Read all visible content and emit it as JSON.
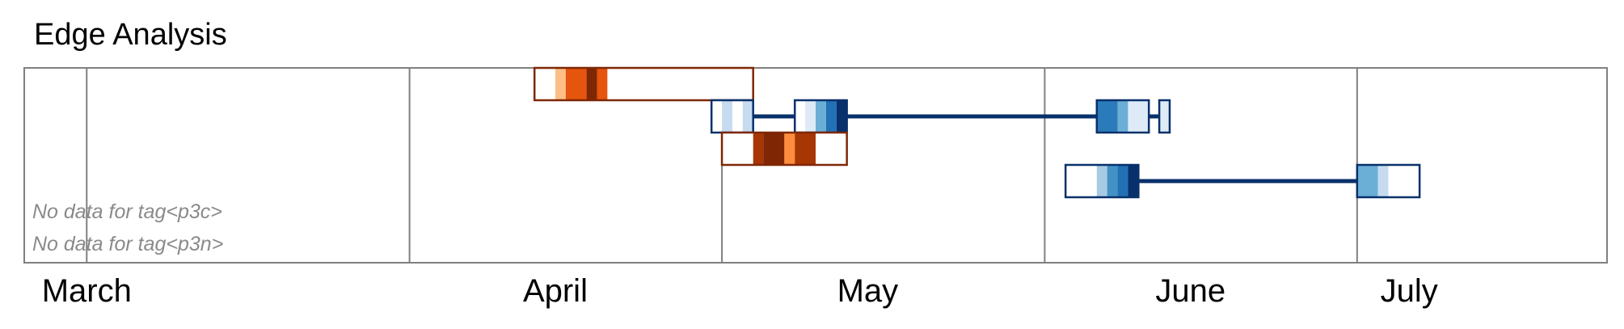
{
  "chart_data": {
    "type": "timeline",
    "title": "Edge Analysis",
    "x_axis": {
      "type": "date",
      "range": [
        "2023-02-23",
        "2023-07-25"
      ],
      "tick_labels": [
        {
          "label": "March",
          "date": "2023-03-01",
          "boundary": "2023-03-01"
        },
        {
          "label": "April",
          "date": "2023-04-15",
          "boundary": "2023-04-01"
        },
        {
          "label": "May",
          "date": "2023-05-15",
          "boundary": "2023-05-01"
        },
        {
          "label": "June",
          "date": "2023-06-15",
          "boundary": "2023-06-01"
        },
        {
          "label": "July",
          "date": "2023-07-06",
          "boundary": "2023-07-01"
        }
      ]
    },
    "grid": "vertical month boundaries",
    "rows": [
      {
        "color_family": "orange",
        "outline": "#7f2704",
        "spans": [
          {
            "start": "2023-04-13",
            "end": "2023-05-04"
          }
        ],
        "cells": [
          {
            "start": "2023-04-15",
            "end": "2023-04-16",
            "color": "#fdbf86"
          },
          {
            "start": "2023-04-16",
            "end": "2023-04-18",
            "color": "#e6550d"
          },
          {
            "start": "2023-04-18",
            "end": "2023-04-19",
            "color": "#7f2704"
          },
          {
            "start": "2023-04-19",
            "end": "2023-04-20",
            "color": "#e6550d"
          }
        ]
      },
      {
        "color_family": "blue",
        "outline": "#08306b",
        "connector": {
          "start": "2023-05-04",
          "end": "2023-06-12"
        },
        "spans": [
          {
            "start": "2023-04-30",
            "end": "2023-05-04"
          },
          {
            "start": "2023-05-08",
            "end": "2023-05-13"
          },
          {
            "start": "2023-06-06",
            "end": "2023-06-11"
          },
          {
            "start": "2023-06-12",
            "end": "2023-06-13"
          }
        ],
        "cells": [
          {
            "start": "2023-05-01",
            "end": "2023-05-02",
            "color": "#c6dbef"
          },
          {
            "start": "2023-05-03",
            "end": "2023-05-04",
            "color": "#c6dbef"
          },
          {
            "start": "2023-05-09",
            "end": "2023-05-10",
            "color": "#deebf7"
          },
          {
            "start": "2023-05-10",
            "end": "2023-05-11",
            "color": "#6baed6"
          },
          {
            "start": "2023-05-11",
            "end": "2023-05-12",
            "color": "#2171b5"
          },
          {
            "start": "2023-05-12",
            "end": "2023-05-13",
            "color": "#08306b"
          },
          {
            "start": "2023-06-06",
            "end": "2023-06-08",
            "color": "#2b7bba"
          },
          {
            "start": "2023-06-08",
            "end": "2023-06-09",
            "color": "#6baed6"
          },
          {
            "start": "2023-06-09",
            "end": "2023-06-11",
            "color": "#deebf7"
          },
          {
            "start": "2023-06-12",
            "end": "2023-06-13",
            "color": "#deebf7"
          }
        ]
      },
      {
        "color_family": "orange",
        "outline": "#7f2704",
        "spans": [
          {
            "start": "2023-05-01",
            "end": "2023-05-13"
          }
        ],
        "cells": [
          {
            "start": "2023-05-04",
            "end": "2023-05-05",
            "color": "#a63603"
          },
          {
            "start": "2023-05-05",
            "end": "2023-05-07",
            "color": "#7f2704"
          },
          {
            "start": "2023-05-07",
            "end": "2023-05-08",
            "color": "#fd8d3c"
          },
          {
            "start": "2023-05-08",
            "end": "2023-05-10",
            "color": "#a63603"
          }
        ]
      },
      {
        "color_family": "blue",
        "outline": "#08306b",
        "connector": {
          "start": "2023-06-10",
          "end": "2023-07-01"
        },
        "spans": [
          {
            "start": "2023-06-03",
            "end": "2023-06-10"
          },
          {
            "start": "2023-07-01",
            "end": "2023-07-07"
          }
        ],
        "cells": [
          {
            "start": "2023-06-06",
            "end": "2023-06-07",
            "color": "#a6cbe3"
          },
          {
            "start": "2023-06-07",
            "end": "2023-06-08",
            "color": "#4292c6"
          },
          {
            "start": "2023-06-08",
            "end": "2023-06-09",
            "color": "#2171b5"
          },
          {
            "start": "2023-06-09",
            "end": "2023-06-10",
            "color": "#08306b"
          },
          {
            "start": "2023-07-01",
            "end": "2023-07-03",
            "color": "#6baed6"
          },
          {
            "start": "2023-07-03",
            "end": "2023-07-04",
            "color": "#c6dbef"
          }
        ]
      }
    ],
    "annotations": [
      "No data for tag<p3c>",
      "No data for tag<p3n>"
    ]
  }
}
